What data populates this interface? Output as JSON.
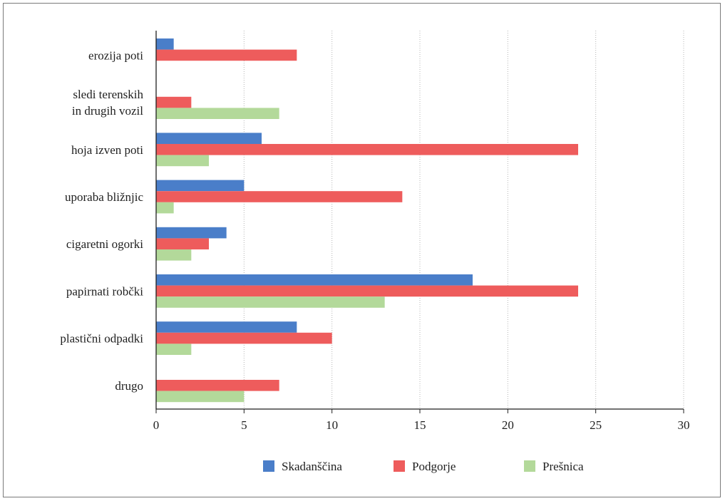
{
  "chart_data": {
    "type": "bar",
    "orientation": "horizontal",
    "categories": [
      [
        "erozija poti"
      ],
      [
        "sledi terenskih",
        "in drugih vozil"
      ],
      [
        "hoja izven poti"
      ],
      [
        "uporaba bližnjic"
      ],
      [
        "cigaretni ogorki"
      ],
      [
        "papirnati robčki"
      ],
      [
        "plastični odpadki"
      ],
      [
        "drugo"
      ]
    ],
    "series": [
      {
        "name": "Skadanščina",
        "color": "#4a7ec9",
        "values": [
          1,
          0,
          6,
          5,
          4,
          18,
          8,
          0
        ]
      },
      {
        "name": "Podgorje",
        "color": "#ee5c5c",
        "values": [
          8,
          2,
          24,
          14,
          3,
          24,
          10,
          7
        ]
      },
      {
        "name": "Prešnica",
        "color": "#b3d99a",
        "values": [
          0,
          7,
          3,
          1,
          2,
          13,
          2,
          5
        ]
      }
    ],
    "xlim": [
      0,
      30
    ],
    "xticks": [
      "0",
      "5",
      "10",
      "15",
      "20",
      "25",
      "30"
    ],
    "grid": "vertical dotted",
    "legend_position": "bottom"
  }
}
